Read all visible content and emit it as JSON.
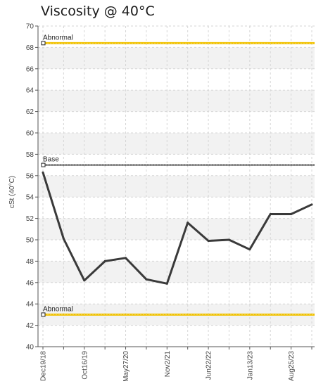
{
  "title": "Viscosity @ 40°C",
  "colors": {
    "series": "#3a3a3a",
    "abnormal": "#f2c200",
    "base": "#4a4a4a",
    "band": "#f2f2f2",
    "grid": "#d6d6d6"
  },
  "chart_data": {
    "type": "line",
    "title": "Viscosity @ 40°C",
    "ylabel": "cSt (40°C)",
    "xlabel": "",
    "ylim": [
      40,
      70
    ],
    "ytick_step": 2,
    "grid": true,
    "x_tick_labels": [
      "Dec19/18",
      "Oct16/19",
      "May27/20",
      "Nov2/21",
      "Jun22/22",
      "Jan13/23",
      "Aug25/23"
    ],
    "x_tick_index": [
      0,
      2,
      4,
      6,
      8,
      10,
      12
    ],
    "series": [
      {
        "values": [
          56.3,
          50.1,
          46.2,
          48.0,
          48.3,
          46.3,
          45.9,
          51.6,
          49.9,
          50.0,
          49.1,
          52.4,
          52.4,
          53.3
        ]
      }
    ],
    "reference_lines": [
      {
        "label": "Abnormal",
        "value": 68.4,
        "kind": "abnormal"
      },
      {
        "label": "Base",
        "value": 57.0,
        "kind": "base"
      },
      {
        "label": "Abnormal",
        "value": 43.0,
        "kind": "abnormal"
      }
    ]
  }
}
